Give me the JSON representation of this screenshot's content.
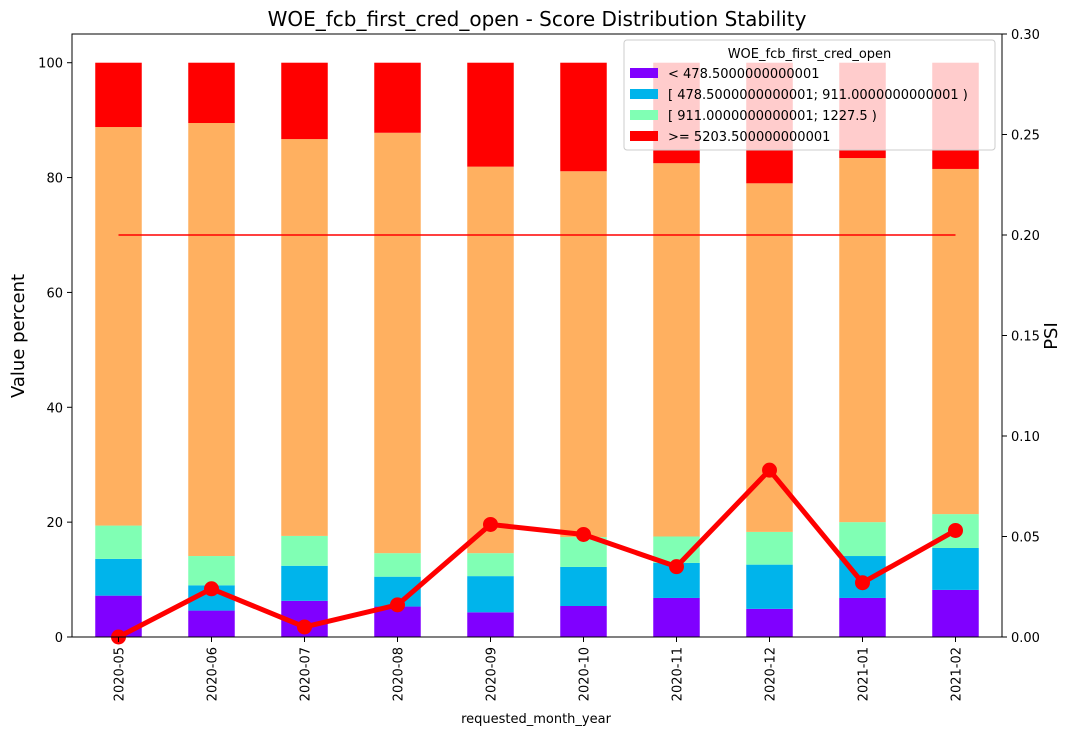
{
  "chart_data": {
    "type": "bar",
    "title": "WOE_fcb_first_cred_open  - Score Distribution Stability",
    "xlabel": "requested_month_year",
    "ylabel": "Value percent",
    "y2label": "PSI",
    "categories": [
      "2020-05",
      "2020-06",
      "2020-07",
      "2020-08",
      "2020-09",
      "2020-10",
      "2020-11",
      "2020-12",
      "2021-01",
      "2021-02"
    ],
    "ylim": [
      0,
      105
    ],
    "y2lim": [
      0,
      0.3
    ],
    "yticks": [
      "0",
      "20",
      "40",
      "60",
      "80",
      "100"
    ],
    "y2ticks": [
      "0.00",
      "0.05",
      "0.10",
      "0.15",
      "0.20",
      "0.25",
      "0.30"
    ],
    "legend": {
      "title": "WOE_fcb_first_cred_open",
      "location": "top-right",
      "entries": [
        {
          "label": "< 478.5000000000001",
          "color": "#8000ff"
        },
        {
          "label": "[ 478.5000000000001; 911.0000000000001 )",
          "color": "#00b4eb"
        },
        {
          "label": "[ 911.0000000000001; 1227.5 )",
          "color": "#80ffb4"
        },
        {
          "label": ">= 5203.500000000001",
          "color": "#ff0000"
        }
      ]
    },
    "series": [
      {
        "name": "< 478.5000000000001",
        "color": "#8000ff",
        "values": [
          7.2,
          4.6,
          6.3,
          5.3,
          4.3,
          5.4,
          6.8,
          4.9,
          6.8,
          8.2
        ]
      },
      {
        "name": "[ 478.5000000000001; 911.0000000000001 )",
        "color": "#00b4eb",
        "values": [
          6.4,
          4.4,
          6.1,
          5.2,
          6.3,
          6.8,
          6.1,
          7.7,
          7.3,
          7.3
        ]
      },
      {
        "name": "[ 911.0000000000001; 1227.5 )",
        "color": "#80ffb4",
        "values": [
          5.8,
          5.1,
          5.2,
          4.1,
          4.0,
          5.2,
          4.6,
          5.7,
          5.9,
          5.9
        ]
      },
      {
        "name": "",
        "color": "#ffb060",
        "values": [
          69.4,
          75.4,
          69.1,
          73.2,
          67.3,
          63.7,
          65.0,
          60.7,
          63.4,
          60.1
        ]
      },
      {
        "name": ">= 5203.500000000001",
        "color": "#ff0000",
        "values": [
          11.2,
          10.5,
          13.3,
          12.2,
          18.1,
          18.9,
          17.5,
          21.0,
          16.6,
          18.5
        ]
      }
    ],
    "psi": {
      "color": "#ff0000",
      "values": [
        0.0,
        0.024,
        0.005,
        0.016,
        0.056,
        0.051,
        0.035,
        0.083,
        0.027,
        0.053
      ]
    },
    "threshold": {
      "color": "#ff0000",
      "value": 0.2
    }
  }
}
